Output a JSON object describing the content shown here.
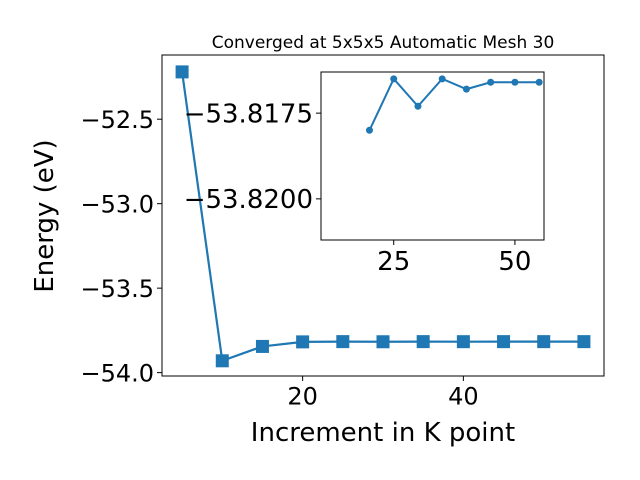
{
  "chart_data": [
    {
      "type": "line",
      "title": "Converged at 5x5x5 Automatic Mesh 30",
      "xlabel": "Increment in K point",
      "ylabel": "Energy (eV)",
      "xlim": [
        2.5,
        57.5
      ],
      "ylim": [
        -54.02,
        -52.12
      ],
      "xticks": [
        20,
        40
      ],
      "yticks": [
        -54.0,
        -53.5,
        -53.0,
        -52.5
      ],
      "ytick_labels": [
        "−54.0",
        "−53.5",
        "−53.0",
        "−52.5"
      ],
      "grid": false,
      "marker": "square",
      "color": "#1f77b4",
      "x": [
        5,
        10,
        15,
        20,
        25,
        30,
        35,
        40,
        45,
        50,
        55
      ],
      "y": [
        -52.22,
        -53.93,
        -53.845,
        -53.818,
        -53.8165,
        -53.8173,
        -53.8165,
        -53.8168,
        -53.8166,
        -53.8166,
        -53.8166
      ]
    },
    {
      "type": "line",
      "title": "",
      "xlabel": "",
      "ylabel": "",
      "xlim": [
        10,
        56
      ],
      "ylim": [
        -53.8212,
        -53.8163
      ],
      "xticks": [
        25,
        50
      ],
      "yticks": [
        -53.82,
        -53.8175
      ],
      "ytick_labels": [
        "−53.8200",
        "−53.8175"
      ],
      "grid": false,
      "marker": "circle",
      "color": "#1f77b4",
      "x": [
        20,
        25,
        30,
        35,
        40,
        45,
        50,
        55
      ],
      "y": [
        -53.818,
        -53.8165,
        -53.8173,
        -53.8165,
        -53.8168,
        -53.8166,
        -53.8166,
        -53.8166
      ]
    }
  ]
}
